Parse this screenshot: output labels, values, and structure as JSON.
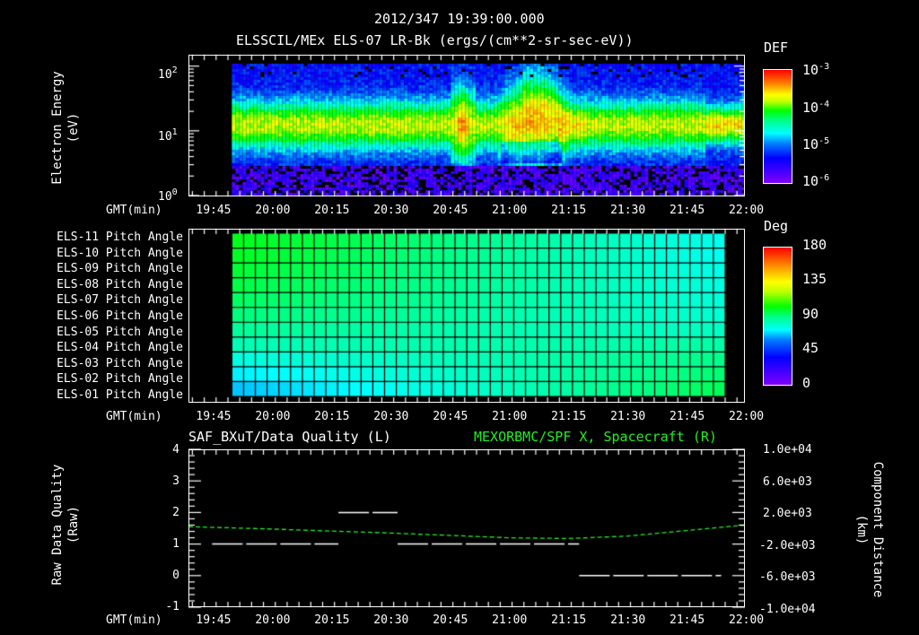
{
  "header": {
    "timestamp": "2012/347 19:39:00.000",
    "title": "ELSSCIL/MEx ELS-07 LR-Bk  (ergs/(cm**2-sr-sec-eV))"
  },
  "time_axis": {
    "label": "GMT(min)",
    "start": "19:39",
    "end": "22:00",
    "ticks": [
      "19:45",
      "20:00",
      "20:15",
      "20:30",
      "20:45",
      "21:00",
      "21:15",
      "21:30",
      "21:45",
      "22:00"
    ]
  },
  "panel1": {
    "ylabel_line1": "Electron Energy",
    "ylabel_line2": "(eV)",
    "yticks": [
      {
        "base": "10",
        "exp": "2"
      },
      {
        "base": "10",
        "exp": "1"
      },
      {
        "base": "10",
        "exp": "0"
      }
    ],
    "colorbar": {
      "title": "DEF",
      "ticks": [
        {
          "base": "10",
          "exp": "-3"
        },
        {
          "base": "10",
          "exp": "-4"
        },
        {
          "base": "10",
          "exp": "-5"
        },
        {
          "base": "10",
          "exp": "-6"
        }
      ]
    }
  },
  "panel2": {
    "rows": [
      "ELS-11 Pitch Angle",
      "ELS-10 Pitch Angle",
      "ELS-09 Pitch Angle",
      "ELS-08 Pitch Angle",
      "ELS-07 Pitch Angle",
      "ELS-06 Pitch Angle",
      "ELS-05 Pitch Angle",
      "ELS-04 Pitch Angle",
      "ELS-03 Pitch Angle",
      "ELS-02 Pitch Angle",
      "ELS-01 Pitch Angle"
    ],
    "colorbar": {
      "title": "Deg",
      "ticks": [
        "180",
        "135",
        "90",
        "45",
        "0"
      ]
    }
  },
  "panel3": {
    "left_title": "SAF_BXuT/Data Quality (L)",
    "right_title": "MEXORBMC/SPF X, Spacecraft (R)",
    "ylabel_left_line1": "Raw Data Quality",
    "ylabel_left_line2": "(Raw)",
    "yticks_left": [
      "4",
      "3",
      "2",
      "1",
      "0",
      "-1"
    ],
    "ylabel_right_line1": "Component Distance",
    "ylabel_right_line2": "(km)",
    "yticks_right": [
      "1.0e+04",
      "6.0e+03",
      "2.0e+03",
      "-2.0e+03",
      "-6.0e+03",
      "-1.0e+04"
    ]
  },
  "colors": {
    "background": "#000000",
    "axis": "#ffffff",
    "spf_line": "#22ee22",
    "quality_line": "#ffffff"
  },
  "chart_data": [
    {
      "type": "heatmap",
      "title": "ELSSCIL/MEx ELS-07 LR-Bk (ergs/(cm**2-sr-sec-eV))",
      "xlabel": "GMT(min)",
      "ylabel": "Electron Energy (eV)",
      "y_scale": "log",
      "ylim": [
        1,
        150
      ],
      "xlim": [
        "19:39",
        "22:00"
      ],
      "data_start": "19:50",
      "colorbar": {
        "label": "DEF",
        "scale": "log",
        "range": [
          1e-06,
          0.001
        ]
      },
      "features": [
        {
          "desc": "persistent band ~5-20 eV, DEF ~1e-5 to 5e-5",
          "from": "19:50",
          "to": "22:00"
        },
        {
          "desc": "enhancement peak ~15 eV",
          "at": "20:48"
        },
        {
          "desc": "broad enhancement up to ~100 eV, dip to ~5 eV",
          "from": "20:57",
          "to": "21:15"
        },
        {
          "desc": "enhancement bands ~15 eV",
          "from": "21:50",
          "to": "21:58"
        }
      ]
    },
    {
      "type": "heatmap",
      "title": "ELS Pitch Angle",
      "xlabel": "GMT(min)",
      "categories": [
        "ELS-11",
        "ELS-10",
        "ELS-09",
        "ELS-08",
        "ELS-07",
        "ELS-06",
        "ELS-05",
        "ELS-04",
        "ELS-03",
        "ELS-02",
        "ELS-01"
      ],
      "xlim": [
        "19:39",
        "22:00"
      ],
      "data_range": [
        "19:50",
        "21:55"
      ],
      "colorbar": {
        "label": "Deg",
        "range": [
          0,
          180
        ]
      },
      "start_values_deg": [
        105,
        104,
        102,
        100,
        97,
        94,
        90,
        86,
        80,
        74,
        68
      ],
      "end_values_deg": [
        78,
        78,
        79,
        80,
        81,
        82,
        84,
        88,
        92,
        95,
        98
      ]
    },
    {
      "type": "line",
      "title": "SAF_BXuT/Data Quality (L)",
      "ylabel": "Raw Data Quality (Raw)",
      "ylim": [
        -1,
        4
      ],
      "series": [
        {
          "name": "Data Quality",
          "segments": [
            {
              "from": "19:45",
              "to": "20:17",
              "value": 1
            },
            {
              "from": "20:17",
              "to": "20:32",
              "value": 2
            },
            {
              "from": "20:32",
              "to": "21:18",
              "value": 1
            },
            {
              "from": "21:18",
              "to": "21:54",
              "value": 0
            }
          ]
        }
      ]
    },
    {
      "type": "line",
      "title": "MEXORBMC/SPF X, Spacecraft (R)",
      "ylabel": "Component Distance (km)",
      "ylim": [
        -10000,
        10000
      ],
      "x": [
        "19:39",
        "19:50",
        "20:00",
        "20:15",
        "20:30",
        "20:45",
        "21:00",
        "21:15",
        "21:30",
        "21:45",
        "22:00"
      ],
      "values": [
        200,
        50,
        -100,
        -350,
        -600,
        -900,
        -1200,
        -1300,
        -1000,
        -300,
        400
      ]
    }
  ]
}
